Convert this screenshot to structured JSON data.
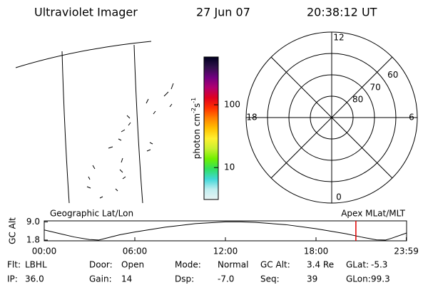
{
  "header": {
    "title": "Ultraviolet Imager",
    "date": "27 Jun 07",
    "time": "20:38:12 UT"
  },
  "map": {
    "left_label": "Geographic Lat/Lon",
    "right_label": "Apex MLat/MLT"
  },
  "colorbar": {
    "label": [
      "photon cm",
      "-2",
      "s",
      "-1"
    ],
    "scale": "log",
    "lim": [
      3.1,
      576
    ],
    "ticks": [
      10,
      100
    ],
    "colors": [
      "#e8f4f4",
      "#bfeef0",
      "#40d8d8",
      "#30e060",
      "#70f000",
      "#c8f030",
      "#fff030",
      "#ffc000",
      "#ff8000",
      "#ff3000",
      "#e00020",
      "#b00070",
      "#700080",
      "#30104a",
      "#000020"
    ]
  },
  "polar": {
    "rlim": [
      90,
      50
    ],
    "rings": [
      60,
      70,
      80
    ],
    "mlt_ticks": [
      12,
      18,
      6,
      0
    ]
  },
  "altitude": {
    "ylabel": "GC Alt",
    "ylim": [
      1.5,
      9.4
    ],
    "yticks": [
      {
        "value": 9,
        "label": "9.0"
      },
      1.8
    ],
    "xlim": [
      0,
      24
    ],
    "xticks": [
      {
        "value": 0,
        "label": "00:00"
      },
      {
        "value": 6,
        "label": "06:00"
      },
      {
        "value": 12,
        "label": "12:00"
      },
      {
        "value": 18,
        "label": "18:00"
      },
      {
        "value": 23.98,
        "label": "23:59"
      }
    ],
    "x": [
      0,
      1,
      2,
      3,
      3.6,
      5,
      6,
      8,
      10,
      12,
      13,
      14,
      16,
      18,
      20,
      21,
      22,
      22.6,
      23,
      24
    ],
    "values": [
      5.8,
      4.4,
      3.0,
      2.0,
      1.8,
      3.9,
      5.0,
      6.9,
      8.3,
      9.0,
      9.0,
      8.8,
      7.9,
      6.3,
      4.3,
      3.0,
      1.9,
      1.8,
      2.5,
      4.6
    ],
    "cursor": 20.64,
    "cursor_color": "#e00000"
  },
  "footer": [
    [
      [
        "Flt:",
        "LBHL"
      ],
      [
        "Door:",
        "Open"
      ],
      [
        "Mode:",
        "Normal"
      ],
      [
        "GC Alt:",
        "3.4 Re"
      ],
      [
        "GLat:",
        "-5.3"
      ]
    ],
    [
      [
        "IP:",
        "36.0"
      ],
      [
        "Gain:",
        "14"
      ],
      [
        "Dsp:",
        "-7.0"
      ],
      [
        "Seq:",
        "39"
      ],
      [
        "GLon:",
        "99.3"
      ]
    ]
  ]
}
